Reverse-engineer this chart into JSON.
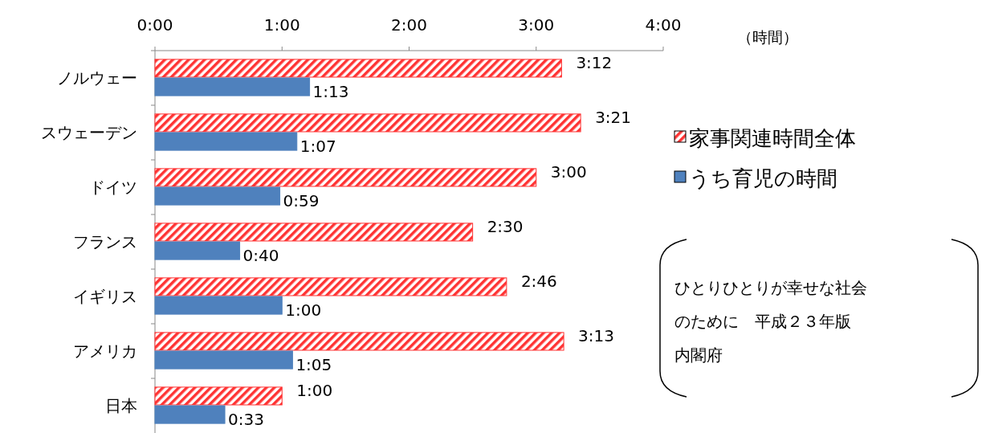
{
  "chart_data": {
    "type": "bar",
    "orientation": "horizontal",
    "xlabel": "（時間）",
    "categories": [
      "ノルウェー",
      "スウェーデン",
      "ドイツ",
      "フランス",
      "イギリス",
      "アメリカ",
      "日本"
    ],
    "series": [
      {
        "name": "家事関連時間全体",
        "color": "#ff3333",
        "values": [
          3.2,
          3.35,
          3.0,
          2.5,
          2.767,
          3.217,
          1.0
        ],
        "value_labels": [
          "3:12",
          "3:21",
          "3:00",
          "2:30",
          "2:46",
          "3:13",
          "1:00"
        ]
      },
      {
        "name": "うち育児の時間",
        "color": "#4f81bd",
        "values": [
          1.217,
          1.117,
          0.983,
          0.667,
          1.0,
          1.083,
          0.55
        ],
        "value_labels": [
          "1:13",
          "1:07",
          "0:59",
          "0:40",
          "1:00",
          "1:05",
          "0:33"
        ]
      }
    ],
    "xlim": [
      0,
      4
    ],
    "xticks": [
      {
        "value": 0,
        "label": "0:00"
      },
      {
        "value": 1,
        "label": "1:00"
      },
      {
        "value": 2,
        "label": "2:00"
      },
      {
        "value": 3,
        "label": "3:00"
      },
      {
        "value": 4,
        "label": "4:00"
      }
    ],
    "legend": "right",
    "annotations": [
      "ひとりひとりが幸せな社会のために　平成２３年版",
      "内閣府"
    ]
  }
}
